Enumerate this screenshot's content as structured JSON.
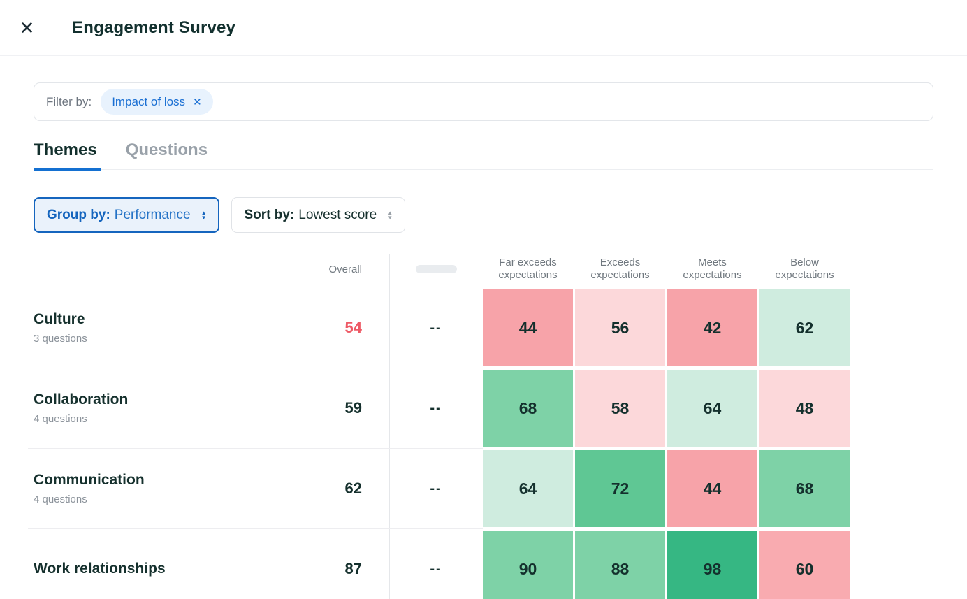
{
  "header": {
    "title": "Engagement Survey"
  },
  "icons": {
    "close": "✕",
    "chip_remove": "✕",
    "arrow_up": "▲",
    "arrow_down": "▼"
  },
  "filter_bar": {
    "label": "Filter by:",
    "chip": {
      "label": "Impact of loss"
    }
  },
  "tabs": {
    "items": [
      {
        "label": "Themes"
      },
      {
        "label": "Questions"
      }
    ]
  },
  "controls": {
    "group_by": {
      "label": "Group by:",
      "value": "Performance"
    },
    "sort_by": {
      "label": "Sort by:",
      "value": "Lowest score"
    }
  },
  "table": {
    "overall_header": "Overall",
    "columns": [
      "Far exceeds expectations",
      "Exceeds expectations",
      "Meets expectations",
      "Below expectations"
    ],
    "rows": [
      {
        "name": "Culture",
        "subtitle": "3 questions",
        "overall": "54",
        "overall_color": "#ee5965",
        "benchmark": "--",
        "cells": [
          {
            "value": "44",
            "bg": "#f7a3a9"
          },
          {
            "value": "56",
            "bg": "#fcd8da"
          },
          {
            "value": "42",
            "bg": "#f7a3a9"
          },
          {
            "value": "62",
            "bg": "#cfecdf"
          }
        ]
      },
      {
        "name": "Collaboration",
        "subtitle": "4 questions",
        "overall": "59",
        "overall_color": "#15302d",
        "benchmark": "--",
        "cells": [
          {
            "value": "68",
            "bg": "#7ed2a7"
          },
          {
            "value": "58",
            "bg": "#fcd8da"
          },
          {
            "value": "64",
            "bg": "#cfecdf"
          },
          {
            "value": "48",
            "bg": "#fcd8da"
          }
        ]
      },
      {
        "name": "Communication",
        "subtitle": "4 questions",
        "overall": "62",
        "overall_color": "#15302d",
        "benchmark": "--",
        "cells": [
          {
            "value": "64",
            "bg": "#cfecdf"
          },
          {
            "value": "72",
            "bg": "#5fc794"
          },
          {
            "value": "44",
            "bg": "#f7a3a9"
          },
          {
            "value": "68",
            "bg": "#7ed2a7"
          }
        ]
      },
      {
        "name": "Work relationships",
        "subtitle": "",
        "overall": "87",
        "overall_color": "#15302d",
        "benchmark": "--",
        "cells": [
          {
            "value": "90",
            "bg": "#7ed2a7"
          },
          {
            "value": "88",
            "bg": "#7ed2a7"
          },
          {
            "value": "98",
            "bg": "#36b783"
          },
          {
            "value": "60",
            "bg": "#f9abb0"
          }
        ]
      }
    ]
  }
}
